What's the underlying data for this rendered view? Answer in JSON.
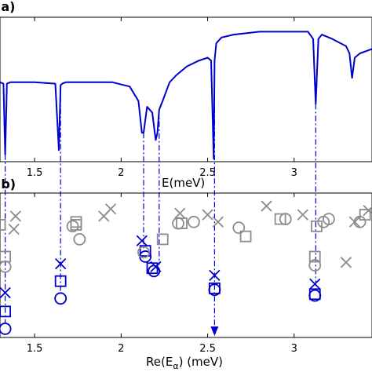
{
  "colors": {
    "blue": "#0000cc",
    "gray": "#8c8c8c",
    "axis": "#000000"
  },
  "chart_data": [
    {
      "type": "line",
      "panel_label": "(a)",
      "xlabel": "E(meV)",
      "ylabel": "",
      "xlim": [
        1.3,
        3.45
      ],
      "ylim": [
        0,
        1
      ],
      "xticks": [
        1.5,
        2,
        2.5,
        3
      ],
      "xtick_labels": [
        "1.5",
        "2",
        "2.5",
        "3"
      ],
      "grid": false,
      "series": [
        {
          "x": [
            1.3,
            1.32,
            1.33,
            1.34,
            1.36,
            1.5,
            1.62,
            1.64,
            1.65,
            1.66,
            1.68,
            1.8,
            1.95,
            2.05,
            2.1,
            2.12,
            2.13,
            2.15,
            2.18,
            2.2,
            2.21,
            2.22,
            2.24,
            2.28,
            2.32,
            2.38,
            2.45,
            2.5,
            2.52,
            2.535,
            2.54,
            2.55,
            2.58,
            2.65,
            2.8,
            3.0,
            3.08,
            3.11,
            3.125,
            3.14,
            3.16,
            3.22,
            3.3,
            3.32,
            3.335,
            3.35,
            3.38,
            3.45
          ],
          "y": [
            0.55,
            0.54,
            0.05,
            0.54,
            0.55,
            0.55,
            0.54,
            0.08,
            0.53,
            0.54,
            0.55,
            0.55,
            0.55,
            0.52,
            0.42,
            0.2,
            0.2,
            0.38,
            0.34,
            0.15,
            0.2,
            0.36,
            0.42,
            0.55,
            0.6,
            0.66,
            0.7,
            0.72,
            0.7,
            0.02,
            0.7,
            0.82,
            0.86,
            0.88,
            0.9,
            0.9,
            0.9,
            0.85,
            0.4,
            0.85,
            0.88,
            0.85,
            0.8,
            0.75,
            0.58,
            0.72,
            0.75,
            0.78
          ]
        }
      ]
    },
    {
      "type": "scatter",
      "panel_label": "(b)",
      "xlabel": "Re(E",
      "xlabel_sub": "α",
      "xlabel_unit": ") (meV)",
      "ylabel": "",
      "xlim": [
        1.3,
        3.45
      ],
      "ylim": [
        0,
        1
      ],
      "xticks": [
        1.5,
        2,
        2.5,
        3
      ],
      "xtick_labels": [
        "1.5",
        "2",
        "2.5",
        "3"
      ],
      "grid": false,
      "series": [
        {
          "color": "blue",
          "points": [
            {
              "x": 1.33,
              "y": 0.31,
              "m": "x"
            },
            {
              "x": 1.33,
              "y": 0.18,
              "m": "square"
            },
            {
              "x": 1.33,
              "y": 0.06,
              "m": "circle"
            },
            {
              "x": 1.65,
              "y": 0.51,
              "m": "x"
            },
            {
              "x": 1.65,
              "y": 0.39,
              "m": "square"
            },
            {
              "x": 1.65,
              "y": 0.27,
              "m": "circle"
            },
            {
              "x": 2.12,
              "y": 0.67,
              "m": "x"
            },
            {
              "x": 2.14,
              "y": 0.6,
              "m": "square"
            },
            {
              "x": 2.14,
              "y": 0.56,
              "m": "circle"
            },
            {
              "x": 2.2,
              "y": 0.49,
              "m": "x"
            },
            {
              "x": 2.18,
              "y": 0.48,
              "m": "square"
            },
            {
              "x": 2.19,
              "y": 0.46,
              "m": "circle"
            },
            {
              "x": 2.54,
              "y": 0.43,
              "m": "x"
            },
            {
              "x": 2.54,
              "y": 0.34,
              "m": "square"
            },
            {
              "x": 2.54,
              "y": 0.33,
              "m": "circle"
            },
            {
              "x": 3.12,
              "y": 0.37,
              "m": "x"
            },
            {
              "x": 3.12,
              "y": 0.3,
              "m": "square"
            },
            {
              "x": 3.12,
              "y": 0.29,
              "m": "circle"
            }
          ]
        },
        {
          "color": "gray",
          "points": [
            {
              "x": 1.3,
              "y": 0.78,
              "m": "square"
            },
            {
              "x": 1.33,
              "y": 0.56,
              "m": "square"
            },
            {
              "x": 1.33,
              "y": 0.49,
              "m": "circle"
            },
            {
              "x": 1.38,
              "y": 0.75,
              "m": "x"
            },
            {
              "x": 1.39,
              "y": 0.84,
              "m": "x"
            },
            {
              "x": 1.72,
              "y": 0.77,
              "m": "circle"
            },
            {
              "x": 1.74,
              "y": 0.8,
              "m": "square"
            },
            {
              "x": 1.74,
              "y": 0.78,
              "m": "square"
            },
            {
              "x": 1.76,
              "y": 0.68,
              "m": "circle"
            },
            {
              "x": 1.9,
              "y": 0.84,
              "m": "x"
            },
            {
              "x": 1.94,
              "y": 0.89,
              "m": "x"
            },
            {
              "x": 2.13,
              "y": 0.59,
              "m": "circle"
            },
            {
              "x": 2.24,
              "y": 0.68,
              "m": "square"
            },
            {
              "x": 2.33,
              "y": 0.79,
              "m": "circle"
            },
            {
              "x": 2.35,
              "y": 0.79,
              "m": "square"
            },
            {
              "x": 2.42,
              "y": 0.8,
              "m": "circle"
            },
            {
              "x": 2.34,
              "y": 0.86,
              "m": "x"
            },
            {
              "x": 2.5,
              "y": 0.85,
              "m": "x"
            },
            {
              "x": 2.56,
              "y": 0.8,
              "m": "x"
            },
            {
              "x": 2.68,
              "y": 0.76,
              "m": "circle"
            },
            {
              "x": 2.72,
              "y": 0.7,
              "m": "square"
            },
            {
              "x": 2.84,
              "y": 0.91,
              "m": "x"
            },
            {
              "x": 2.92,
              "y": 0.82,
              "m": "square"
            },
            {
              "x": 2.95,
              "y": 0.82,
              "m": "circle"
            },
            {
              "x": 3.05,
              "y": 0.85,
              "m": "x"
            },
            {
              "x": 3.13,
              "y": 0.77,
              "m": "square"
            },
            {
              "x": 3.17,
              "y": 0.8,
              "m": "circle"
            },
            {
              "x": 3.2,
              "y": 0.82,
              "m": "circle"
            },
            {
              "x": 3.12,
              "y": 0.56,
              "m": "square"
            },
            {
              "x": 3.12,
              "y": 0.5,
              "m": "circle"
            },
            {
              "x": 3.3,
              "y": 0.52,
              "m": "x"
            },
            {
              "x": 3.35,
              "y": 0.8,
              "m": "x"
            },
            {
              "x": 3.38,
              "y": 0.8,
              "m": "circle"
            },
            {
              "x": 3.41,
              "y": 0.85,
              "m": "square"
            },
            {
              "x": 3.43,
              "y": 0.88,
              "m": "x"
            }
          ]
        }
      ],
      "connectors": [
        1.33,
        1.65,
        2.13,
        2.22,
        2.54,
        3.125
      ]
    }
  ]
}
